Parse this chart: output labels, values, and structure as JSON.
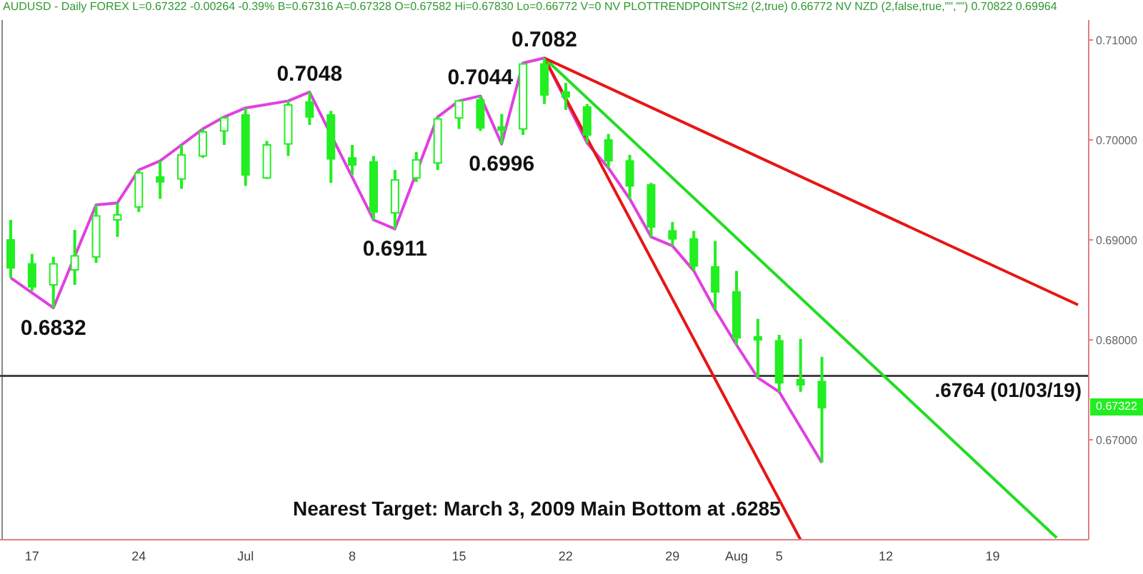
{
  "chart_data": {
    "type": "candlestick",
    "subtitle": "AUDUSD - Daily FOREX L=0.67322 -0.00264 -0.39% B=0.67316 A=0.67328 O=0.67582 Hi=0.67830 Lo=0.66772 V=0 NV PLOTTRENDPOINTS#2 (2,true) 0.66772 NV NZD (2,false,true,\"\",\"\") 0.70822 0.69964",
    "categories": [
      null,
      "17",
      null,
      null,
      null,
      null,
      "24",
      null,
      null,
      null,
      null,
      "Jul",
      null,
      null,
      null,
      null,
      "8",
      null,
      null,
      null,
      null,
      "15",
      null,
      null,
      null,
      null,
      "22",
      null,
      null,
      null,
      null,
      "29",
      null,
      null,
      "Aug",
      null,
      "5",
      null,
      null,
      null,
      null,
      "12",
      null,
      null,
      null,
      null,
      "19",
      null,
      null,
      null,
      null
    ],
    "color": "#22ee22",
    "ohlc": [
      [
        0.69,
        0.692,
        0.6862,
        0.6872
      ],
      [
        0.6876,
        0.6886,
        0.6849,
        0.6853
      ],
      [
        0.6855,
        0.6883,
        0.6832,
        0.6876
      ],
      [
        0.687,
        0.691,
        0.6855,
        0.6884
      ],
      [
        0.6883,
        0.6935,
        0.6877,
        0.6924
      ],
      [
        0.692,
        0.6937,
        0.6903,
        0.6925
      ],
      [
        0.6933,
        0.697,
        0.6928,
        0.6967
      ],
      [
        0.6963,
        0.6979,
        0.6941,
        0.6958
      ],
      [
        0.6961,
        0.6995,
        0.6951,
        0.6985
      ],
      [
        0.6984,
        0.7011,
        0.6982,
        0.7008
      ],
      [
        0.7009,
        0.7023,
        0.6995,
        0.7022
      ],
      [
        0.7025,
        0.7032,
        0.6954,
        0.6965
      ],
      [
        0.6962,
        0.6999,
        0.6961,
        0.6995
      ],
      [
        0.6996,
        0.7039,
        0.6984,
        0.7035
      ],
      [
        0.7038,
        0.7048,
        0.7015,
        0.7023
      ],
      [
        0.7025,
        0.7029,
        0.6957,
        0.6981
      ],
      [
        0.6982,
        0.6995,
        0.6965,
        0.6975
      ],
      [
        0.6978,
        0.6984,
        0.692,
        0.6928
      ],
      [
        0.6927,
        0.697,
        0.6911,
        0.696
      ],
      [
        0.6962,
        0.6988,
        0.6958,
        0.698
      ],
      [
        0.6977,
        0.7023,
        0.697,
        0.7021
      ],
      [
        0.7022,
        0.7039,
        0.7011,
        0.7039
      ],
      [
        0.704,
        0.7044,
        0.7009,
        0.7012
      ],
      [
        0.7013,
        0.7026,
        0.6996,
        0.701
      ],
      [
        0.7011,
        0.7077,
        0.7005,
        0.7076
      ],
      [
        0.7076,
        0.7082,
        0.7036,
        0.7045
      ],
      [
        0.7048,
        0.7057,
        0.703,
        0.7043
      ],
      [
        0.7033,
        0.7036,
        0.6997,
        0.7005
      ],
      [
        0.7,
        0.7006,
        0.6972,
        0.6979
      ],
      [
        0.6979,
        0.6985,
        0.6941,
        0.6954
      ],
      [
        0.6955,
        0.6957,
        0.6903,
        0.6913
      ],
      [
        0.6909,
        0.6918,
        0.6894,
        0.6901
      ],
      [
        0.6901,
        0.6909,
        0.6869,
        0.6874
      ],
      [
        0.6873,
        0.6899,
        0.683,
        0.6848
      ],
      [
        0.6848,
        0.6869,
        0.6795,
        0.6802
      ],
      [
        0.6803,
        0.6821,
        0.6762,
        0.68
      ],
      [
        0.6799,
        0.6805,
        0.6748,
        0.6757
      ],
      [
        0.676,
        0.6801,
        0.6748,
        0.6755
      ],
      [
        0.67582,
        0.6783,
        0.66772,
        0.67322
      ],
      null,
      null,
      null,
      null,
      null,
      null,
      null,
      null,
      null,
      null,
      null,
      null
    ],
    "series": [
      {
        "type": "line",
        "color": "#e040e0",
        "values": [
          0.6862,
          null,
          0.6832,
          null,
          0.6935,
          0.6937,
          0.697,
          0.6979,
          0.6995,
          0.7011,
          0.7023,
          0.7032,
          null,
          0.7039,
          0.7048,
          null,
          null,
          0.692,
          0.6911,
          null,
          0.7023,
          0.7039,
          0.7044,
          0.6996,
          0.7077,
          0.7082,
          null,
          0.6997,
          0.6972,
          0.6941,
          0.6903,
          0.6894,
          0.6869,
          0.683,
          0.6795,
          0.6762,
          0.6748,
          null,
          0.6677,
          null,
          null,
          null,
          null,
          null,
          null,
          null,
          null,
          null,
          null,
          null,
          null
        ]
      },
      {
        "type": "line",
        "color": "#e81515",
        "values": [
          null,
          null,
          null,
          null,
          null,
          null,
          null,
          null,
          null,
          null,
          null,
          null,
          null,
          null,
          null,
          null,
          null,
          null,
          null,
          null,
          null,
          null,
          null,
          null,
          null,
          0.7082,
          null,
          null,
          null,
          null,
          null,
          null,
          null,
          null,
          null,
          null,
          null,
          0.66,
          null,
          null,
          null,
          null,
          null,
          null,
          null,
          null,
          null,
          null,
          null,
          null,
          null
        ]
      },
      {
        "type": "line",
        "color": "#22dd22",
        "values": [
          null,
          null,
          null,
          null,
          null,
          null,
          null,
          null,
          null,
          null,
          null,
          null,
          null,
          null,
          null,
          null,
          null,
          null,
          null,
          null,
          null,
          null,
          null,
          null,
          null,
          0.7082,
          null,
          null,
          null,
          null,
          null,
          null,
          null,
          null,
          null,
          null,
          null,
          null,
          null,
          null,
          null,
          null,
          null,
          null,
          null,
          null,
          null,
          null,
          null,
          0.6602,
          null
        ]
      },
      {
        "type": "line",
        "color": "#e81515",
        "values": [
          null,
          null,
          null,
          null,
          null,
          null,
          null,
          null,
          null,
          null,
          null,
          null,
          null,
          null,
          null,
          null,
          null,
          null,
          null,
          null,
          null,
          null,
          null,
          null,
          null,
          0.7082,
          null,
          null,
          null,
          null,
          null,
          null,
          null,
          null,
          null,
          null,
          null,
          null,
          null,
          null,
          null,
          null,
          null,
          null,
          null,
          null,
          null,
          null,
          null,
          null,
          0.6835
        ]
      }
    ],
    "ylim": [
      0.66,
      0.712
    ],
    "yticks": [
      {
        "value": 0.67,
        "label": "0.67000"
      },
      {
        "value": 0.68,
        "label": "0.68000"
      },
      {
        "value": 0.69,
        "label": "0.69000"
      },
      {
        "value": 0.7,
        "label": "0.70000"
      },
      {
        "value": 0.71,
        "label": "0.71000"
      }
    ],
    "ref_lines": [
      {
        "axis": "y",
        "value": 0.6764,
        "label": ".6764 (01/03/19)",
        "color": "#444444"
      }
    ],
    "annotations": [
      {
        "text": "0.6832",
        "y": 0.6832
      },
      {
        "text": "0.7048",
        "y": 0.7048
      },
      {
        "text": "0.6911",
        "y": 0.6911
      },
      {
        "text": "0.7044",
        "y": 0.7044
      },
      {
        "text": "0.6996",
        "y": 0.6996
      },
      {
        "text": "0.7082",
        "y": 0.7082
      },
      {
        "text": "0.67322",
        "y": 0.67322
      },
      "Nearest Target:  March 3, 2009 Main Bottom at .6285"
    ],
    "marker": "none",
    "line_style": "solid"
  }
}
